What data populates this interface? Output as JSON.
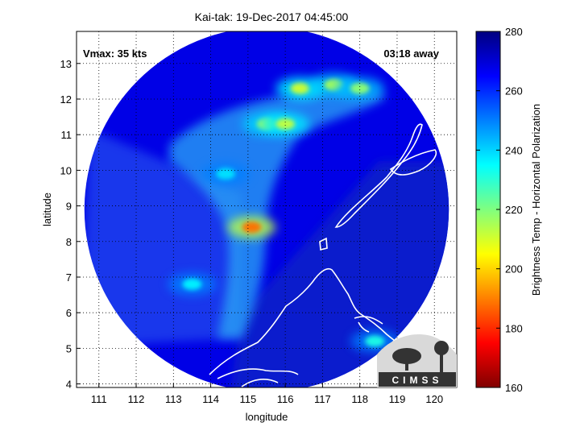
{
  "chart_data": {
    "type": "heatmap",
    "title": "Kai-tak: 19-Dec-2017 04:45:00",
    "xlabel": "longitude",
    "ylabel": "latitude",
    "xlim": [
      110.4,
      120.6
    ],
    "ylim": [
      3.9,
      13.9
    ],
    "xticks": [
      111,
      112,
      113,
      114,
      115,
      116,
      117,
      118,
      119,
      120
    ],
    "yticks": [
      4,
      5,
      6,
      7,
      8,
      9,
      10,
      11,
      12,
      13
    ],
    "grid": true,
    "annotations": {
      "vmax": "Vmax: 35 kts",
      "time_away": "03:18 away"
    },
    "colorbar": {
      "label": "Brightness Temp - Horizontal Polarization",
      "min": 160,
      "max": 280,
      "ticks": [
        160,
        180,
        200,
        220,
        240,
        260,
        280
      ],
      "colormap": "jet"
    },
    "swath": {
      "center_lon": 115.5,
      "center_lat": 8.9,
      "radius_deg": 5.0,
      "background_value": 268
    },
    "features": [
      {
        "lon": 116.4,
        "lat": 12.3,
        "value": 210
      },
      {
        "lon": 117.3,
        "lat": 12.4,
        "value": 215
      },
      {
        "lon": 118.0,
        "lat": 12.3,
        "value": 218
      },
      {
        "lon": 115.5,
        "lat": 11.3,
        "value": 215
      },
      {
        "lon": 116.0,
        "lat": 11.3,
        "value": 212
      },
      {
        "lon": 115.1,
        "lat": 8.4,
        "value": 188
      },
      {
        "lon": 114.4,
        "lat": 9.9,
        "value": 238
      },
      {
        "lon": 113.5,
        "lat": 6.8,
        "value": 236
      },
      {
        "lon": 118.4,
        "lat": 5.2,
        "value": 232
      }
    ],
    "logo": "CIMSS"
  }
}
